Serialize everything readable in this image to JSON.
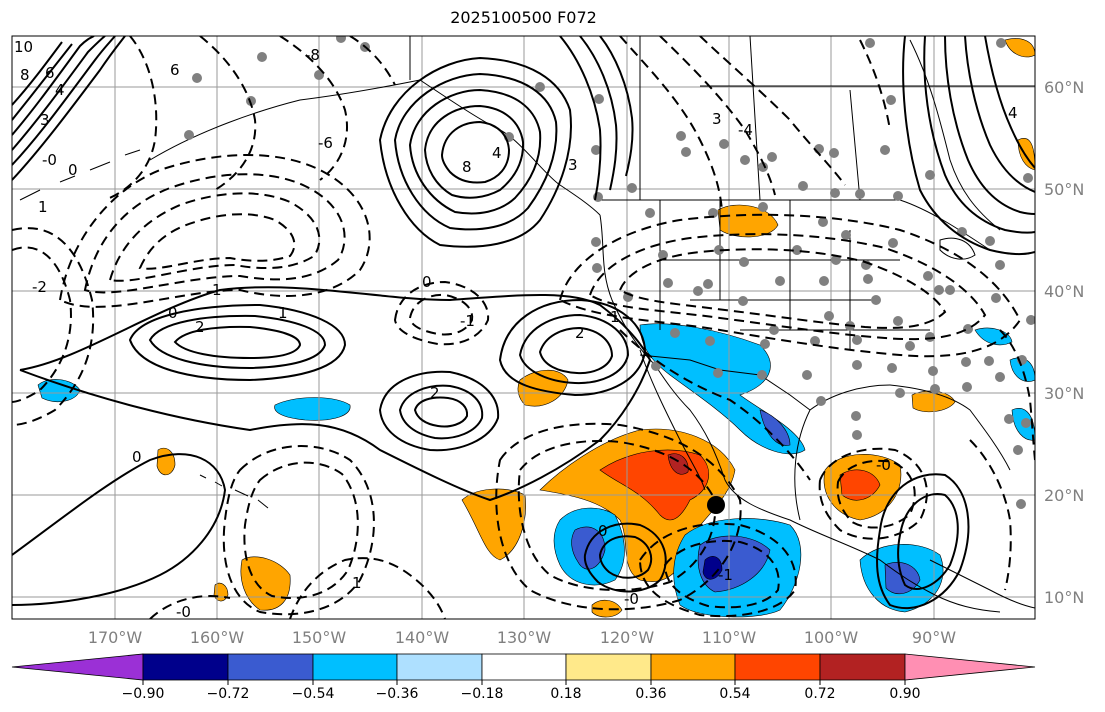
{
  "title": "2025100500 F072",
  "map": {
    "lon_labels": [
      "170°W",
      "160°W",
      "150°W",
      "140°W",
      "130°W",
      "120°W",
      "110°W",
      "100°W",
      "90°W"
    ],
    "lat_labels": [
      "60°N",
      "50°N",
      "40°N",
      "30°N",
      "20°N",
      "10°N"
    ],
    "contour_labels": [
      "10",
      "8",
      "6",
      "4",
      "3",
      "1",
      "0",
      "-0",
      "2",
      "1",
      "0",
      "1",
      "2",
      "3",
      "8",
      "4",
      "-4",
      "3",
      "-8",
      "6",
      "-6",
      "2",
      "1",
      "0",
      "-1",
      "-0",
      "0",
      "-0",
      "1",
      "-1",
      "0",
      "-0",
      "-2",
      "4"
    ],
    "storm_marker": "storm-center"
  },
  "colorbar": {
    "colors": [
      "#9b30d6",
      "#00008b",
      "#3a5bd0",
      "#00bfff",
      "#aee0ff",
      "#ffffff",
      "#ffe98a",
      "#ffa500",
      "#ff4500",
      "#b22222",
      "#ff8fb3"
    ],
    "tick_labels": [
      "−0.90",
      "−0.72",
      "−0.54",
      "−0.36",
      "−0.18",
      "0.18",
      "0.36",
      "0.54",
      "0.72",
      "0.90"
    ]
  }
}
